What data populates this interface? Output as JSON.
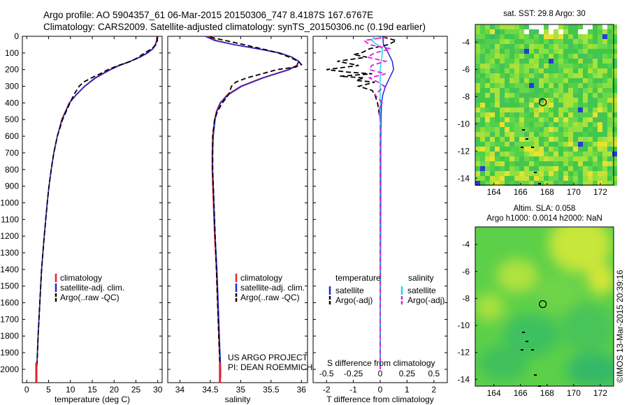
{
  "header": {
    "line1": "Argo profile: AO 5904357_61 06-Mar-2015 20150306_747 8.4187S 167.6767E",
    "line2": "Climatology: CARS2009. Satellite-adjusted climatology: synTS_20150306.nc (0.19d earlier)"
  },
  "colors": {
    "climatology": "#e8202a",
    "satellite": "#1a2ad8",
    "argo": "#000000",
    "salinity_sat": "#22d8e8",
    "salinity_argo": "#e020d8"
  },
  "chart_data": [
    {
      "type": "line",
      "name": "temperature-profile",
      "xlabel": "temperature (deg C)",
      "ylabel": "",
      "xlim": [
        -1,
        31
      ],
      "ylim": [
        2080,
        0
      ],
      "xticks": [
        0,
        5,
        10,
        15,
        20,
        25,
        30
      ],
      "yticks": [
        0,
        100,
        200,
        300,
        400,
        500,
        600,
        700,
        800,
        900,
        1000,
        1100,
        1200,
        1300,
        1400,
        1500,
        1600,
        1700,
        1800,
        1900,
        2000
      ],
      "legend": [
        "climatology",
        "satellite-adj. clim.",
        "Argo(..raw -QC)"
      ],
      "series": [
        {
          "name": "climatology",
          "depth": [
            0,
            25,
            50,
            75,
            100,
            125,
            150,
            175,
            200,
            250,
            300,
            350,
            400,
            500,
            600,
            700,
            800,
            900,
            1000,
            1200,
            1400,
            1600,
            1800,
            2000,
            2050
          ],
          "values": [
            29.8,
            29.7,
            29.4,
            28.8,
            27.5,
            25.8,
            23.6,
            21.1,
            19.0,
            15.6,
            13.2,
            11.3,
            9.7,
            8.0,
            7.0,
            6.2,
            5.6,
            5.1,
            4.7,
            4.0,
            3.4,
            3.0,
            2.6,
            2.3,
            2.2
          ]
        },
        {
          "name": "satellite-adj. clim.",
          "depth": [
            0,
            25,
            50,
            75,
            100,
            125,
            150,
            175,
            200,
            250,
            300,
            350,
            400,
            500,
            600,
            700,
            800,
            900,
            1000,
            1200,
            1400,
            1600,
            1800,
            2000,
            2050
          ],
          "values": [
            29.9,
            29.8,
            29.5,
            28.9,
            27.7,
            26.0,
            23.8,
            21.3,
            19.2,
            15.8,
            13.3,
            11.4,
            9.8,
            8.1,
            7.0,
            6.2,
            5.6,
            5.1,
            4.7,
            4.0,
            3.4,
            3.0,
            2.6,
            2.3,
            2.2
          ]
        },
        {
          "name": "Argo(..raw -QC)",
          "depth": [
            5,
            25,
            50,
            75,
            100,
            125,
            150,
            175,
            200,
            225,
            250,
            275,
            300,
            350,
            400,
            500,
            600,
            700,
            800,
            900,
            1000,
            1200,
            1400,
            1600,
            1800,
            2000
          ],
          "values": [
            29.9,
            29.9,
            29.6,
            28.6,
            27.0,
            25.6,
            23.9,
            21.0,
            18.6,
            16.8,
            14.8,
            13.0,
            12.0,
            10.8,
            9.9,
            8.2,
            7.0,
            6.2,
            5.6,
            5.1,
            4.7,
            4.0,
            3.4,
            3.0,
            2.6,
            2.3
          ]
        }
      ]
    },
    {
      "type": "line",
      "name": "salinity-profile",
      "xlabel": "salinity",
      "xlim": [
        33.8,
        36.1
      ],
      "ylim": [
        2080,
        0
      ],
      "xticks": [
        34,
        34.5,
        35,
        35.5,
        36
      ],
      "legend": [
        "climatology",
        "satellite-adj. clim.",
        "Argo(..raw -QC)"
      ],
      "annotation": [
        "US ARGO PROJECT",
        "PI: DEAN ROEMMICH"
      ],
      "series": [
        {
          "name": "climatology",
          "depth": [
            0,
            25,
            50,
            75,
            100,
            125,
            150,
            175,
            200,
            250,
            300,
            350,
            400,
            450,
            500,
            600,
            700,
            800,
            1000,
            1200,
            1400,
            1600,
            1800,
            2000,
            2050
          ],
          "values": [
            34.45,
            34.6,
            34.9,
            35.3,
            35.65,
            35.85,
            35.95,
            35.92,
            35.78,
            35.35,
            35.0,
            34.78,
            34.66,
            34.6,
            34.57,
            34.54,
            34.53,
            34.53,
            34.55,
            34.57,
            34.6,
            34.62,
            34.64,
            34.66,
            34.66
          ]
        },
        {
          "name": "satellite-adj. clim.",
          "depth": [
            0,
            25,
            50,
            75,
            100,
            125,
            150,
            175,
            200,
            250,
            300,
            350,
            400,
            450,
            500,
            600,
            700,
            800,
            1000,
            1200,
            1400,
            1600,
            1800,
            2000,
            2050
          ],
          "values": [
            34.42,
            34.57,
            34.88,
            35.28,
            35.63,
            35.84,
            35.96,
            35.93,
            35.8,
            35.37,
            35.02,
            34.8,
            34.67,
            34.61,
            34.58,
            34.55,
            34.54,
            34.54,
            34.56,
            34.58,
            34.61,
            34.63,
            34.65,
            34.67,
            34.67
          ]
        },
        {
          "name": "Argo(..raw -QC)",
          "depth": [
            5,
            25,
            50,
            75,
            100,
            125,
            150,
            170,
            185,
            200,
            225,
            250,
            275,
            300,
            350,
            400,
            450,
            500,
            600,
            800,
            1000,
            1400,
            1800,
            2000
          ],
          "values": [
            34.5,
            34.75,
            35.05,
            35.35,
            35.62,
            35.8,
            35.95,
            36.0,
            35.9,
            35.6,
            35.35,
            35.1,
            34.92,
            34.85,
            34.8,
            34.7,
            34.62,
            34.57,
            34.54,
            34.54,
            34.56,
            34.6,
            34.64,
            34.66
          ]
        }
      ]
    },
    {
      "type": "line",
      "name": "difference-profile",
      "xlabel": "T difference from climatology",
      "xlabel_top": "S difference from climatology",
      "xlim": [
        -2.5,
        2.5
      ],
      "ylim": [
        2080,
        0
      ],
      "xticks": [
        -2,
        -1,
        0,
        1,
        2
      ],
      "xticks_s": [
        "-0.5",
        "-0.25",
        "0",
        "0.25",
        "0.5"
      ],
      "legend_titles": [
        "temperature",
        "salinity"
      ],
      "legend": [
        "satellite",
        "Argo(-adj)",
        "satellite",
        "Argo(-adj)"
      ],
      "series": [
        {
          "name": "temperature satellite",
          "depth": [
            0,
            50,
            100,
            150,
            200,
            250,
            300,
            350,
            400,
            500,
            700,
            1000,
            1500,
            2000
          ],
          "values": [
            0.1,
            0.12,
            0.3,
            0.45,
            0.5,
            0.35,
            0.2,
            0.1,
            0.05,
            0.03,
            0.02,
            0.02,
            0.01,
            0.0
          ]
        },
        {
          "name": "temperature Argo(-adj)",
          "depth": [
            5,
            25,
            50,
            75,
            100,
            110,
            125,
            150,
            175,
            200,
            215,
            225,
            240,
            250,
            265,
            275,
            300,
            325,
            350,
            400,
            500,
            700,
            1000,
            1500,
            2000
          ],
          "values": [
            0.1,
            0.6,
            0.3,
            -0.4,
            -0.7,
            -1.0,
            -0.5,
            -1.6,
            -0.8,
            -2.0,
            -1.2,
            -0.3,
            -1.5,
            -0.6,
            -0.9,
            -0.2,
            -0.8,
            -0.3,
            -0.2,
            -0.1,
            0.0,
            0.0,
            0.0,
            0.0,
            0.0
          ]
        },
        {
          "name": "salinity satellite",
          "depth": [
            0,
            25,
            50,
            75,
            100,
            150,
            200,
            250,
            300,
            400,
            500,
            700,
            1000,
            1500,
            2000
          ],
          "values": [
            -0.05,
            -0.08,
            -0.03,
            0.02,
            0.02,
            0.01,
            0.0,
            0.0,
            0.0,
            0.0,
            0.0,
            0.0,
            0.0,
            0.0,
            0.0
          ]
        },
        {
          "name": "salinity Argo(-adj)",
          "depth": [
            5,
            25,
            50,
            75,
            100,
            125,
            150,
            175,
            200,
            225,
            250,
            275,
            300,
            350,
            400,
            450,
            500,
            700,
            1000,
            1500,
            2000
          ],
          "values": [
            0.06,
            -0.15,
            -0.1,
            0.1,
            -0.05,
            -0.12,
            0.05,
            -0.08,
            -0.1,
            0.05,
            -0.1,
            -0.02,
            0.04,
            -0.05,
            0.02,
            -0.02,
            0.01,
            0.0,
            0.0,
            0.0,
            0.0
          ]
        }
      ]
    },
    {
      "type": "heatmap",
      "name": "sst-map",
      "title": "sat. SST: 29.8 Argo: 30",
      "xlim": [
        162.6,
        173
      ],
      "ylim": [
        -14.5,
        -2.7
      ],
      "xticks": [
        164,
        166,
        168,
        170,
        172
      ],
      "yticks": [
        -4,
        -6,
        -8,
        -10,
        -12,
        -14
      ],
      "float_position": [
        167.6767,
        -8.4187
      ]
    },
    {
      "type": "heatmap",
      "name": "sla-map",
      "title": "Altim. SLA: 0.058",
      "subtitle": "Argo h1000: 0.0014 h2000: NaN",
      "xlim": [
        162.6,
        173
      ],
      "ylim": [
        -14.5,
        -2.7
      ],
      "xticks": [
        164,
        166,
        168,
        170,
        172
      ],
      "yticks": [
        -4,
        -6,
        -8,
        -10,
        -12,
        -14
      ],
      "float_position": [
        167.6767,
        -8.4187
      ]
    }
  ],
  "footer": {
    "stamp": "©IMOS 13-Mar-2015 20:39:16"
  }
}
